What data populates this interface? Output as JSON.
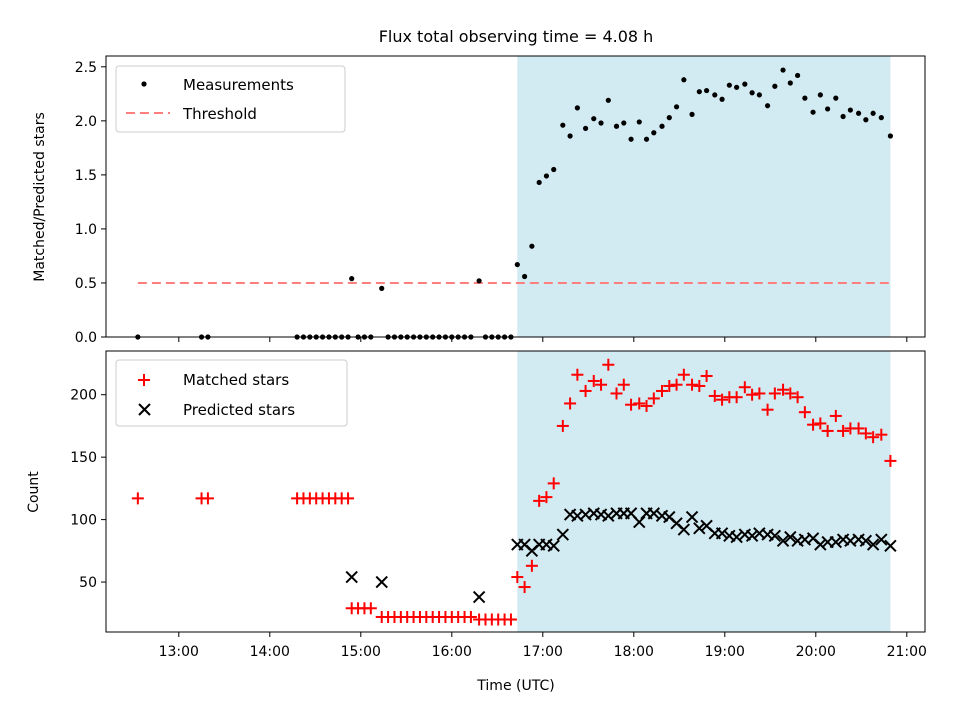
{
  "chart_data": [
    {
      "type": "scatter",
      "title": "Flux total observing time = 4.08 h",
      "xlabel": "",
      "ylabel": "Matched/Predicted stars",
      "xlim": [
        12.2,
        21.2
      ],
      "ylim": [
        0,
        2.6
      ],
      "yticks": [
        0.0,
        0.5,
        1.0,
        1.5,
        2.0,
        2.5
      ],
      "ytick_labels": [
        "0.0",
        "0.5",
        "1.0",
        "1.5",
        "2.0",
        "2.5"
      ],
      "legend": {
        "position": "top-left",
        "entries": [
          "Measurements",
          "Threshold"
        ]
      },
      "shaded_region": {
        "x_start": 16.72,
        "x_end": 20.82,
        "color": "#add8e6"
      },
      "threshold": {
        "name": "Threshold",
        "value": 0.5,
        "x_start": 12.55,
        "x_end": 20.82,
        "color": "#ff7f7f"
      },
      "series": [
        {
          "name": "Measurements",
          "marker": "dot",
          "color": "#000000",
          "points": [
            [
              12.55,
              0
            ],
            [
              13.25,
              0
            ],
            [
              13.32,
              0
            ],
            [
              14.3,
              0
            ],
            [
              14.37,
              0
            ],
            [
              14.44,
              0
            ],
            [
              14.51,
              0
            ],
            [
              14.58,
              0
            ],
            [
              14.65,
              0
            ],
            [
              14.72,
              0
            ],
            [
              14.79,
              0
            ],
            [
              14.86,
              0
            ],
            [
              14.9,
              0.54
            ],
            [
              14.97,
              0
            ],
            [
              15.04,
              0
            ],
            [
              15.11,
              0
            ],
            [
              15.23,
              0.45
            ],
            [
              15.3,
              0
            ],
            [
              15.37,
              0
            ],
            [
              15.44,
              0
            ],
            [
              15.51,
              0
            ],
            [
              15.58,
              0
            ],
            [
              15.65,
              0
            ],
            [
              15.72,
              0
            ],
            [
              15.79,
              0
            ],
            [
              15.86,
              0
            ],
            [
              15.93,
              0
            ],
            [
              16.0,
              0
            ],
            [
              16.07,
              0
            ],
            [
              16.14,
              0
            ],
            [
              16.21,
              0
            ],
            [
              16.3,
              0.52
            ],
            [
              16.37,
              0
            ],
            [
              16.44,
              0
            ],
            [
              16.51,
              0
            ],
            [
              16.58,
              0
            ],
            [
              16.65,
              0
            ],
            [
              16.72,
              0.67
            ],
            [
              16.8,
              0.56
            ],
            [
              16.88,
              0.84
            ],
            [
              16.96,
              1.43
            ],
            [
              17.04,
              1.49
            ],
            [
              17.12,
              1.55
            ],
            [
              17.22,
              1.96
            ],
            [
              17.3,
              1.86
            ],
            [
              17.38,
              2.12
            ],
            [
              17.47,
              1.93
            ],
            [
              17.56,
              2.02
            ],
            [
              17.64,
              1.98
            ],
            [
              17.72,
              2.19
            ],
            [
              17.81,
              1.95
            ],
            [
              17.89,
              1.98
            ],
            [
              17.97,
              1.83
            ],
            [
              18.06,
              1.99
            ],
            [
              18.14,
              1.83
            ],
            [
              18.22,
              1.89
            ],
            [
              18.31,
              1.95
            ],
            [
              18.39,
              2.03
            ],
            [
              18.47,
              2.13
            ],
            [
              18.55,
              2.38
            ],
            [
              18.64,
              2.06
            ],
            [
              18.72,
              2.27
            ],
            [
              18.8,
              2.28
            ],
            [
              18.89,
              2.24
            ],
            [
              18.97,
              2.2
            ],
            [
              19.05,
              2.33
            ],
            [
              19.13,
              2.31
            ],
            [
              19.22,
              2.34
            ],
            [
              19.3,
              2.26
            ],
            [
              19.38,
              2.24
            ],
            [
              19.47,
              2.14
            ],
            [
              19.55,
              2.32
            ],
            [
              19.64,
              2.47
            ],
            [
              19.72,
              2.35
            ],
            [
              19.8,
              2.42
            ],
            [
              19.88,
              2.21
            ],
            [
              19.97,
              2.08
            ],
            [
              20.05,
              2.24
            ],
            [
              20.13,
              2.11
            ],
            [
              20.22,
              2.21
            ],
            [
              20.3,
              2.04
            ],
            [
              20.38,
              2.1
            ],
            [
              20.47,
              2.07
            ],
            [
              20.55,
              2.01
            ],
            [
              20.63,
              2.07
            ],
            [
              20.72,
              2.03
            ],
            [
              20.82,
              1.86
            ]
          ]
        }
      ]
    },
    {
      "type": "scatter",
      "title": "",
      "xlabel": "Time (UTC)",
      "ylabel": "Count",
      "xlim": [
        12.2,
        21.2
      ],
      "ylim": [
        10,
        235
      ],
      "xticks": [
        13,
        14,
        15,
        16,
        17,
        18,
        19,
        20,
        21
      ],
      "xtick_labels": [
        "13:00",
        "14:00",
        "15:00",
        "16:00",
        "17:00",
        "18:00",
        "19:00",
        "20:00",
        "21:00"
      ],
      "yticks": [
        50,
        100,
        150,
        200
      ],
      "ytick_labels": [
        "50",
        "100",
        "150",
        "200"
      ],
      "legend": {
        "position": "top-left",
        "entries": [
          "Matched stars",
          "Predicted stars"
        ]
      },
      "shaded_region": {
        "x_start": 16.72,
        "x_end": 20.82,
        "color": "#add8e6"
      },
      "series": [
        {
          "name": "Matched stars",
          "marker": "plus",
          "color": "#ff0000",
          "points": [
            [
              12.55,
              117
            ],
            [
              13.25,
              117
            ],
            [
              13.32,
              117
            ],
            [
              14.3,
              117
            ],
            [
              14.37,
              117
            ],
            [
              14.44,
              117
            ],
            [
              14.51,
              117
            ],
            [
              14.58,
              117
            ],
            [
              14.65,
              117
            ],
            [
              14.72,
              117
            ],
            [
              14.79,
              117
            ],
            [
              14.86,
              117
            ],
            [
              14.9,
              29
            ],
            [
              14.97,
              29
            ],
            [
              15.04,
              29
            ],
            [
              15.11,
              29
            ],
            [
              15.23,
              22
            ],
            [
              15.3,
              22
            ],
            [
              15.37,
              22
            ],
            [
              15.44,
              22
            ],
            [
              15.51,
              22
            ],
            [
              15.58,
              22
            ],
            [
              15.65,
              22
            ],
            [
              15.72,
              22
            ],
            [
              15.79,
              22
            ],
            [
              15.86,
              22
            ],
            [
              15.93,
              22
            ],
            [
              16.0,
              22
            ],
            [
              16.07,
              22
            ],
            [
              16.14,
              22
            ],
            [
              16.21,
              22
            ],
            [
              16.3,
              20
            ],
            [
              16.37,
              20
            ],
            [
              16.44,
              20
            ],
            [
              16.51,
              20
            ],
            [
              16.58,
              20
            ],
            [
              16.65,
              20
            ],
            [
              16.72,
              54
            ],
            [
              16.8,
              46
            ],
            [
              16.88,
              63
            ],
            [
              16.96,
              115
            ],
            [
              17.04,
              118
            ],
            [
              17.12,
              129
            ],
            [
              17.22,
              175
            ],
            [
              17.3,
              193
            ],
            [
              17.38,
              216
            ],
            [
              17.47,
              203
            ],
            [
              17.56,
              211
            ],
            [
              17.64,
              208
            ],
            [
              17.72,
              224
            ],
            [
              17.81,
              201
            ],
            [
              17.89,
              208
            ],
            [
              17.97,
              192
            ],
            [
              18.06,
              193
            ],
            [
              18.14,
              191
            ],
            [
              18.22,
              197
            ],
            [
              18.31,
              203
            ],
            [
              18.39,
              207
            ],
            [
              18.47,
              208
            ],
            [
              18.55,
              216
            ],
            [
              18.64,
              208
            ],
            [
              18.72,
              207
            ],
            [
              18.8,
              215
            ],
            [
              18.89,
              199
            ],
            [
              18.97,
              196
            ],
            [
              19.05,
              198
            ],
            [
              19.13,
              198
            ],
            [
              19.22,
              206
            ],
            [
              19.3,
              200
            ],
            [
              19.38,
              201
            ],
            [
              19.47,
              188
            ],
            [
              19.55,
              201
            ],
            [
              19.64,
              204
            ],
            [
              19.72,
              201
            ],
            [
              19.8,
              198
            ],
            [
              19.88,
              186
            ],
            [
              19.97,
              176
            ],
            [
              20.05,
              177
            ],
            [
              20.13,
              171
            ],
            [
              20.22,
              183
            ],
            [
              20.3,
              171
            ],
            [
              20.38,
              173
            ],
            [
              20.47,
              173
            ],
            [
              20.55,
              169
            ],
            [
              20.63,
              166
            ],
            [
              20.72,
              168
            ],
            [
              20.82,
              147
            ]
          ]
        },
        {
          "name": "Predicted stars",
          "marker": "x",
          "color": "#000000",
          "points": [
            [
              14.9,
              54
            ],
            [
              15.23,
              50
            ],
            [
              16.3,
              38
            ],
            [
              16.72,
              80
            ],
            [
              16.8,
              80
            ],
            [
              16.88,
              75
            ],
            [
              16.96,
              80
            ],
            [
              17.04,
              80
            ],
            [
              17.12,
              79
            ],
            [
              17.22,
              88
            ],
            [
              17.3,
              104
            ],
            [
              17.38,
              103
            ],
            [
              17.47,
              104
            ],
            [
              17.56,
              105
            ],
            [
              17.64,
              104
            ],
            [
              17.72,
              103
            ],
            [
              17.81,
              105
            ],
            [
              17.89,
              105
            ],
            [
              17.97,
              105
            ],
            [
              18.06,
              98
            ],
            [
              18.14,
              105
            ],
            [
              18.22,
              105
            ],
            [
              18.31,
              103
            ],
            [
              18.39,
              102
            ],
            [
              18.47,
              97
            ],
            [
              18.55,
              92
            ],
            [
              18.64,
              102
            ],
            [
              18.72,
              93
            ],
            [
              18.8,
              95
            ],
            [
              18.89,
              89
            ],
            [
              18.97,
              89
            ],
            [
              19.05,
              87
            ],
            [
              19.13,
              86
            ],
            [
              19.22,
              88
            ],
            [
              19.3,
              87
            ],
            [
              19.38,
              89
            ],
            [
              19.47,
              88
            ],
            [
              19.55,
              87
            ],
            [
              19.64,
              83
            ],
            [
              19.72,
              86
            ],
            [
              19.8,
              83
            ],
            [
              19.88,
              84
            ],
            [
              19.97,
              85
            ],
            [
              20.05,
              80
            ],
            [
              20.13,
              82
            ],
            [
              20.22,
              82
            ],
            [
              20.3,
              84
            ],
            [
              20.38,
              83
            ],
            [
              20.47,
              84
            ],
            [
              20.55,
              83
            ],
            [
              20.63,
              80
            ],
            [
              20.72,
              84
            ],
            [
              20.82,
              79
            ]
          ]
        }
      ]
    }
  ]
}
